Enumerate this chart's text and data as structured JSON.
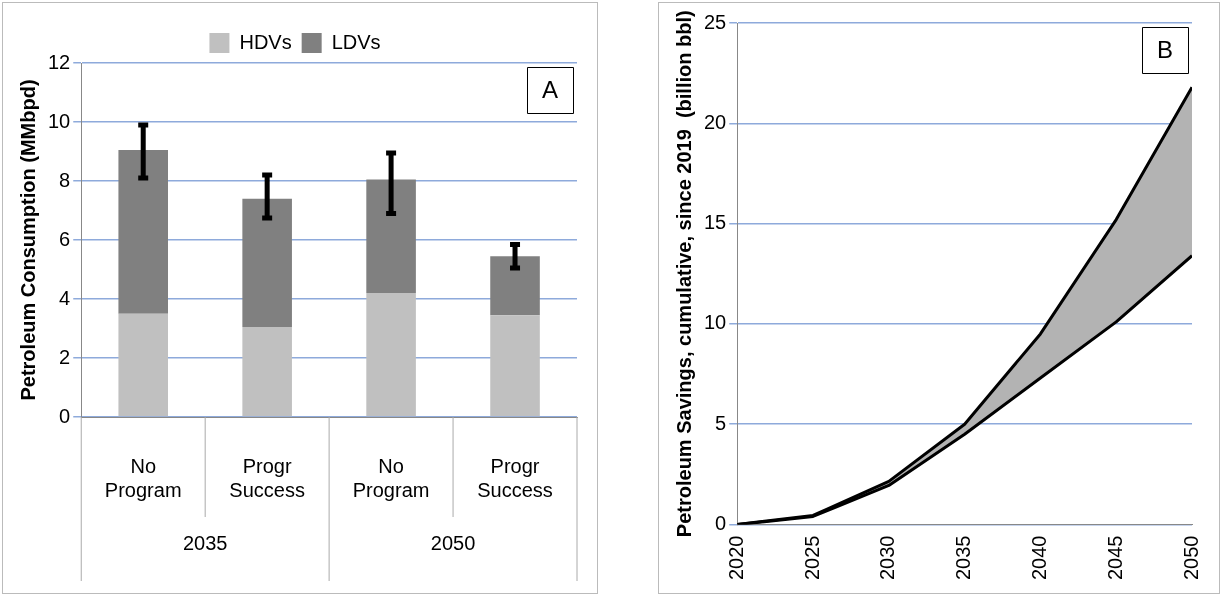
{
  "chart_data": [
    {
      "type": "bar",
      "stacked": true,
      "ylabel": "Petroleum Consumption (MMbpd)",
      "categories": [
        "No Program",
        "Progr Success",
        "No Program",
        "Progr Success"
      ],
      "ylim": [
        0,
        12
      ],
      "yticks": [
        0,
        2,
        4,
        6,
        8,
        10,
        12
      ],
      "grid": "y",
      "legend": "top",
      "annotations": [
        "A",
        "2035",
        "2050"
      ],
      "series": [
        {
          "name": "HDVs",
          "color": "#c0c0c0",
          "values": [
            3.5,
            3.05,
            4.2,
            3.45
          ]
        },
        {
          "name": "LDVs",
          "color": "#808080",
          "values": [
            5.55,
            4.35,
            3.85,
            2.0
          ],
          "errors": [
            [
              8.1,
              9.9
            ],
            [
              6.75,
              8.2
            ],
            [
              6.9,
              8.95
            ],
            [
              5.05,
              5.85
            ]
          ]
        }
      ]
    },
    {
      "type": "line",
      "ylabel": "Petroleum Savings, cumulative, since 2019  (billion bbl)",
      "x": [
        2020,
        2025,
        2030,
        2035,
        2040,
        2045,
        2050
      ],
      "xlim": [
        2020,
        2050
      ],
      "xticks": [
        2020,
        2025,
        2030,
        2035,
        2040,
        2045,
        2050
      ],
      "ylim": [
        0,
        25
      ],
      "yticks": [
        0,
        5,
        10,
        15,
        20,
        25
      ],
      "grid": "y",
      "legend": false,
      "annotations": [
        "B"
      ],
      "series": [
        {
          "type": "line",
          "color": "#000000",
          "values": [
            0,
            0.4,
            1.95,
            4.5,
            7.3,
            10.1,
            13.4
          ]
        },
        {
          "type": "area",
          "color": "#b3b3b3",
          "values": [
            0,
            0.45,
            2.15,
            5.0,
            9.5,
            15.2,
            21.8
          ]
        }
      ]
    }
  ]
}
